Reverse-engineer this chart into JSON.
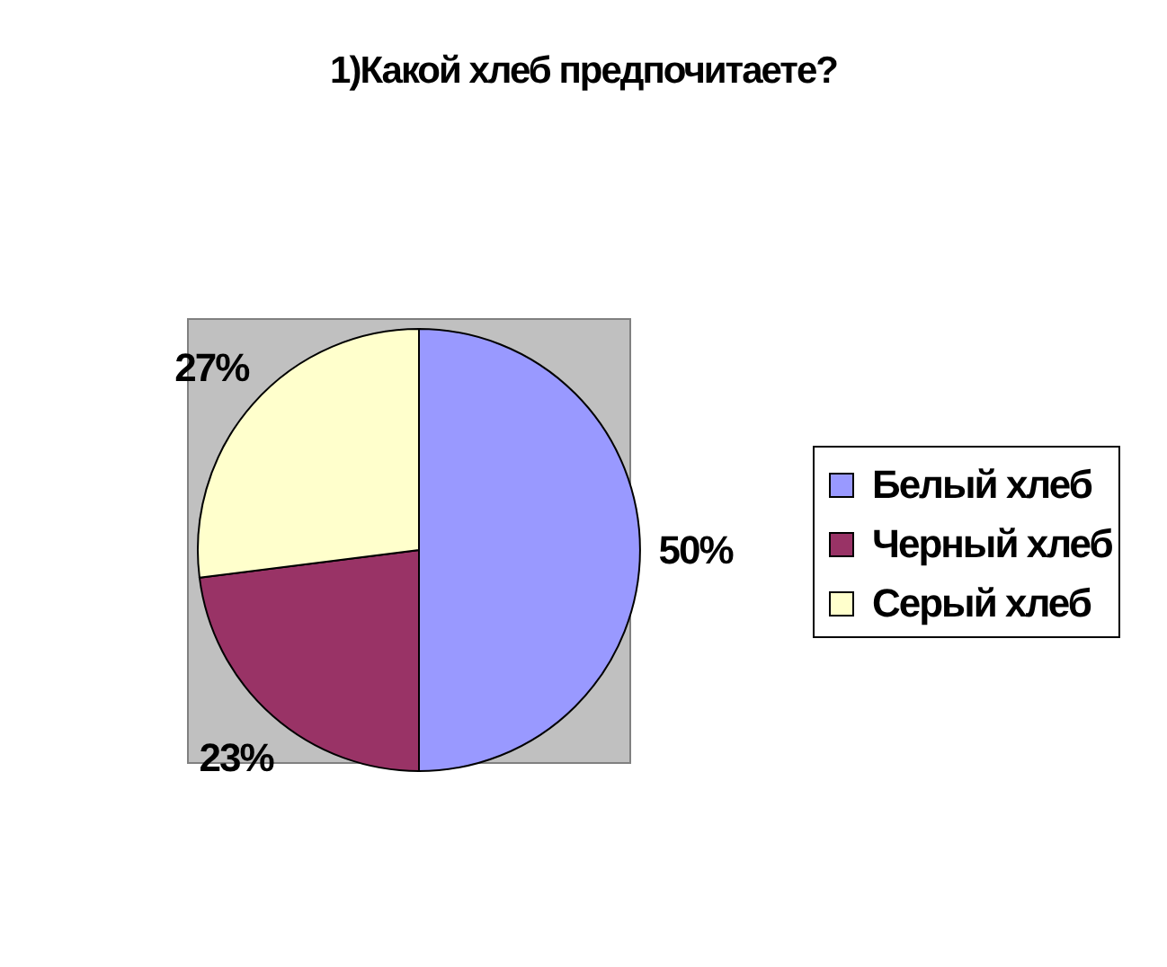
{
  "chart_data": {
    "type": "pie",
    "title": "1)Какой хлеб предпочитаете?",
    "categories": [
      "Белый хлеб",
      "Черный хлеб",
      "Серый хлеб"
    ],
    "values": [
      50,
      23,
      27
    ],
    "colors": [
      "#9999ff",
      "#993366",
      "#ffffcc"
    ],
    "value_labels": [
      "50%",
      "23%",
      "27%"
    ],
    "legend": "right"
  }
}
